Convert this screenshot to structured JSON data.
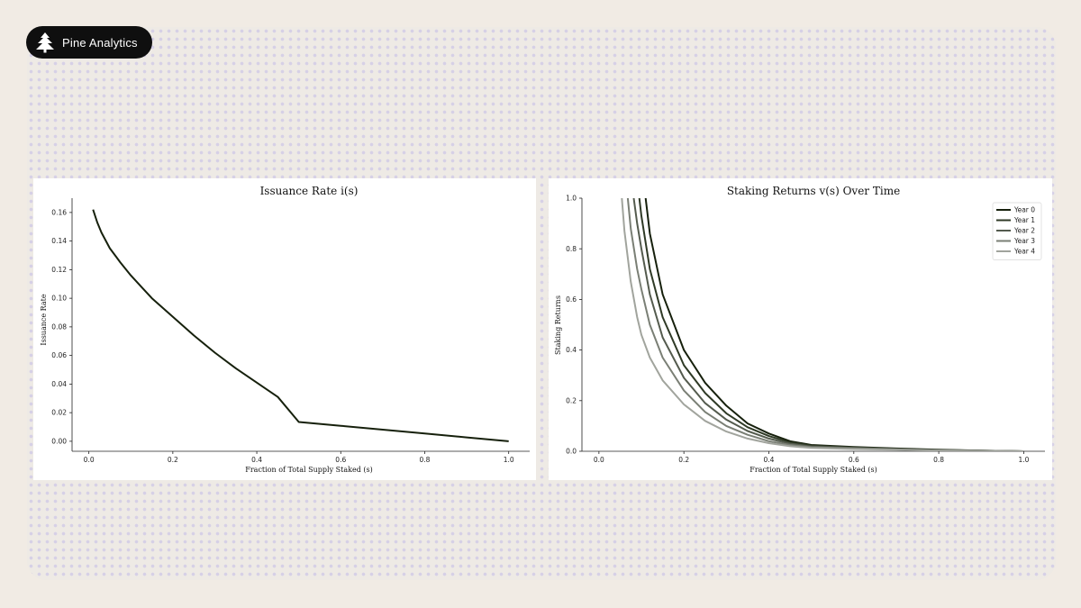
{
  "brand": {
    "name": "Pine Analytics",
    "logo_icon": "pine-tree-icon"
  },
  "colors": {
    "background": "#f1ebe4",
    "badge": "#0f0f0f",
    "series": [
      "#16200c",
      "#2f3a26",
      "#545b4e",
      "#7a7f75",
      "#a1a49d"
    ]
  },
  "chart_data": [
    {
      "type": "line",
      "title": "Issuance Rate i(s)",
      "xlabel": "Fraction of Total Supply Staked (s)",
      "ylabel": "Issuance Rate",
      "xlim": [
        -0.04,
        1.05
      ],
      "ylim": [
        -0.007,
        0.17
      ],
      "xticks": [
        0.0,
        0.2,
        0.4,
        0.6,
        0.8,
        1.0
      ],
      "yticks": [
        0.0,
        0.02,
        0.04,
        0.06,
        0.08,
        0.1,
        0.12,
        0.14,
        0.16
      ],
      "xtick_labels": [
        "0.0",
        "0.2",
        "0.4",
        "0.6",
        "0.8",
        "1.0"
      ],
      "ytick_labels": [
        "0.00",
        "0.02",
        "0.04",
        "0.06",
        "0.08",
        "0.10",
        "0.12",
        "0.14",
        "0.16"
      ],
      "series": [
        {
          "x": [
            0.01,
            0.02,
            0.03,
            0.05,
            0.075,
            0.1,
            0.125,
            0.15,
            0.2,
            0.25,
            0.3,
            0.35,
            0.4,
            0.45,
            0.5,
            0.6,
            0.7,
            0.8,
            0.9,
            1.0
          ],
          "y": [
            0.162,
            0.153,
            0.146,
            0.135,
            0.125,
            0.116,
            0.108,
            0.1,
            0.087,
            0.074,
            0.062,
            0.051,
            0.041,
            0.031,
            0.0135,
            0.0108,
            0.0081,
            0.0054,
            0.0027,
            0.0
          ]
        }
      ],
      "grid": false,
      "legend": "none"
    },
    {
      "type": "line",
      "title": "Staking Returns v(s) Over Time",
      "xlabel": "Fraction of Total Supply Staked (s)",
      "ylabel": "Staking Returns",
      "xlim": [
        -0.04,
        1.05
      ],
      "ylim": [
        0.0,
        1.0
      ],
      "xticks": [
        0.0,
        0.2,
        0.4,
        0.6,
        0.8,
        1.0
      ],
      "yticks": [
        0.0,
        0.2,
        0.4,
        0.6,
        0.8,
        1.0
      ],
      "xtick_labels": [
        "0.0",
        "0.2",
        "0.4",
        "0.6",
        "0.8",
        "1.0"
      ],
      "ytick_labels": [
        "0.0",
        "0.2",
        "0.4",
        "0.6",
        "0.8",
        "1.0"
      ],
      "x": [
        0.1,
        0.12,
        0.15,
        0.2,
        0.25,
        0.3,
        0.35,
        0.4,
        0.45,
        0.5,
        0.6,
        0.7,
        0.8,
        0.9,
        1.0
      ],
      "series": [
        {
          "name": "Year 0",
          "x": [
            0.11,
            0.12,
            0.15,
            0.2,
            0.25,
            0.3,
            0.35,
            0.4,
            0.45,
            0.5,
            0.6,
            0.7,
            0.8,
            0.9,
            1.0
          ],
          "y": [
            1.0,
            0.86,
            0.62,
            0.4,
            0.27,
            0.18,
            0.11,
            0.07,
            0.04,
            0.025,
            0.017,
            0.011,
            0.006,
            0.003,
            0.0
          ]
        },
        {
          "name": "Year 1",
          "x": [
            0.095,
            0.1,
            0.12,
            0.15,
            0.2,
            0.25,
            0.3,
            0.35,
            0.4,
            0.45,
            0.5,
            0.6,
            0.7,
            0.8,
            0.9,
            1.0
          ],
          "y": [
            1.0,
            0.93,
            0.72,
            0.53,
            0.34,
            0.23,
            0.15,
            0.095,
            0.06,
            0.035,
            0.022,
            0.015,
            0.01,
            0.005,
            0.0025,
            0.0
          ]
        },
        {
          "name": "Year 2",
          "x": [
            0.082,
            0.09,
            0.1,
            0.12,
            0.15,
            0.2,
            0.25,
            0.3,
            0.35,
            0.4,
            0.45,
            0.5,
            0.6,
            0.7,
            0.8,
            0.9,
            1.0
          ],
          "y": [
            1.0,
            0.9,
            0.8,
            0.62,
            0.45,
            0.29,
            0.19,
            0.125,
            0.08,
            0.05,
            0.03,
            0.019,
            0.013,
            0.008,
            0.004,
            0.002,
            0.0
          ]
        },
        {
          "name": "Year 3",
          "x": [
            0.068,
            0.075,
            0.09,
            0.1,
            0.12,
            0.15,
            0.2,
            0.25,
            0.3,
            0.35,
            0.4,
            0.45,
            0.5,
            0.6,
            0.7,
            0.8,
            0.9,
            1.0
          ],
          "y": [
            1.0,
            0.88,
            0.72,
            0.64,
            0.5,
            0.37,
            0.24,
            0.155,
            0.1,
            0.065,
            0.04,
            0.025,
            0.016,
            0.011,
            0.007,
            0.0035,
            0.0017,
            0.0
          ]
        },
        {
          "name": "Year 4",
          "x": [
            0.054,
            0.06,
            0.075,
            0.09,
            0.1,
            0.12,
            0.15,
            0.2,
            0.25,
            0.3,
            0.35,
            0.4,
            0.45,
            0.5,
            0.6,
            0.7,
            0.8,
            0.9,
            1.0
          ],
          "y": [
            1.0,
            0.87,
            0.67,
            0.53,
            0.46,
            0.37,
            0.28,
            0.185,
            0.12,
            0.078,
            0.05,
            0.032,
            0.02,
            0.013,
            0.009,
            0.006,
            0.003,
            0.0015,
            0.0
          ]
        }
      ],
      "grid": false,
      "legend": "top-right"
    }
  ]
}
